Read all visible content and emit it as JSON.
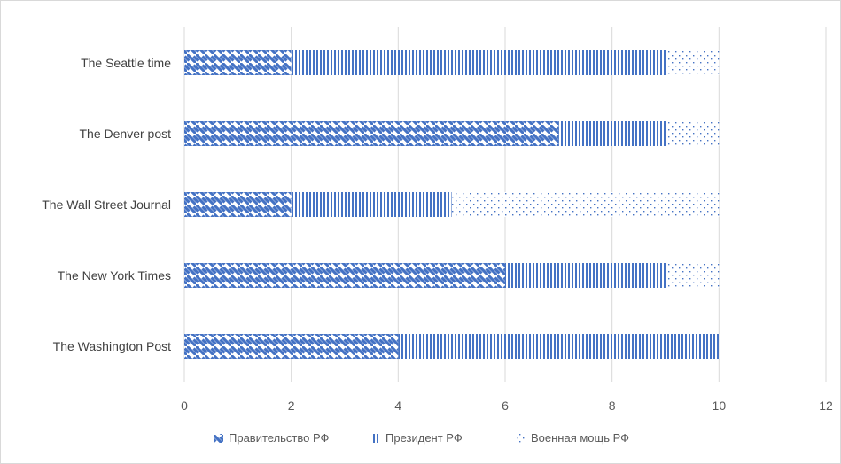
{
  "chart_data": {
    "type": "bar",
    "orientation": "horizontal",
    "stacked": true,
    "title": "",
    "xlabel": "",
    "ylabel": "",
    "categories": [
      "The Washington Post",
      "The New York Times",
      "The Wall Street Journal",
      "The Denver post",
      "The Seattle time"
    ],
    "series": [
      {
        "name": "Правительство РФ",
        "pattern": "diagonal-stripes",
        "color": "#4472c4",
        "values": [
          4,
          6,
          2,
          7,
          2
        ]
      },
      {
        "name": "Президент РФ",
        "pattern": "vertical-stripes",
        "color": "#4472c4",
        "values": [
          6,
          3,
          3,
          2,
          7
        ]
      },
      {
        "name": "Военная мощь РФ",
        "pattern": "dots",
        "color": "#4472c4",
        "values": [
          0,
          1,
          5,
          1,
          1
        ]
      }
    ],
    "xlim": [
      0,
      12
    ],
    "xticks": [
      0,
      2,
      4,
      6,
      8,
      10,
      12
    ],
    "grid": true,
    "legend_position": "bottom"
  }
}
